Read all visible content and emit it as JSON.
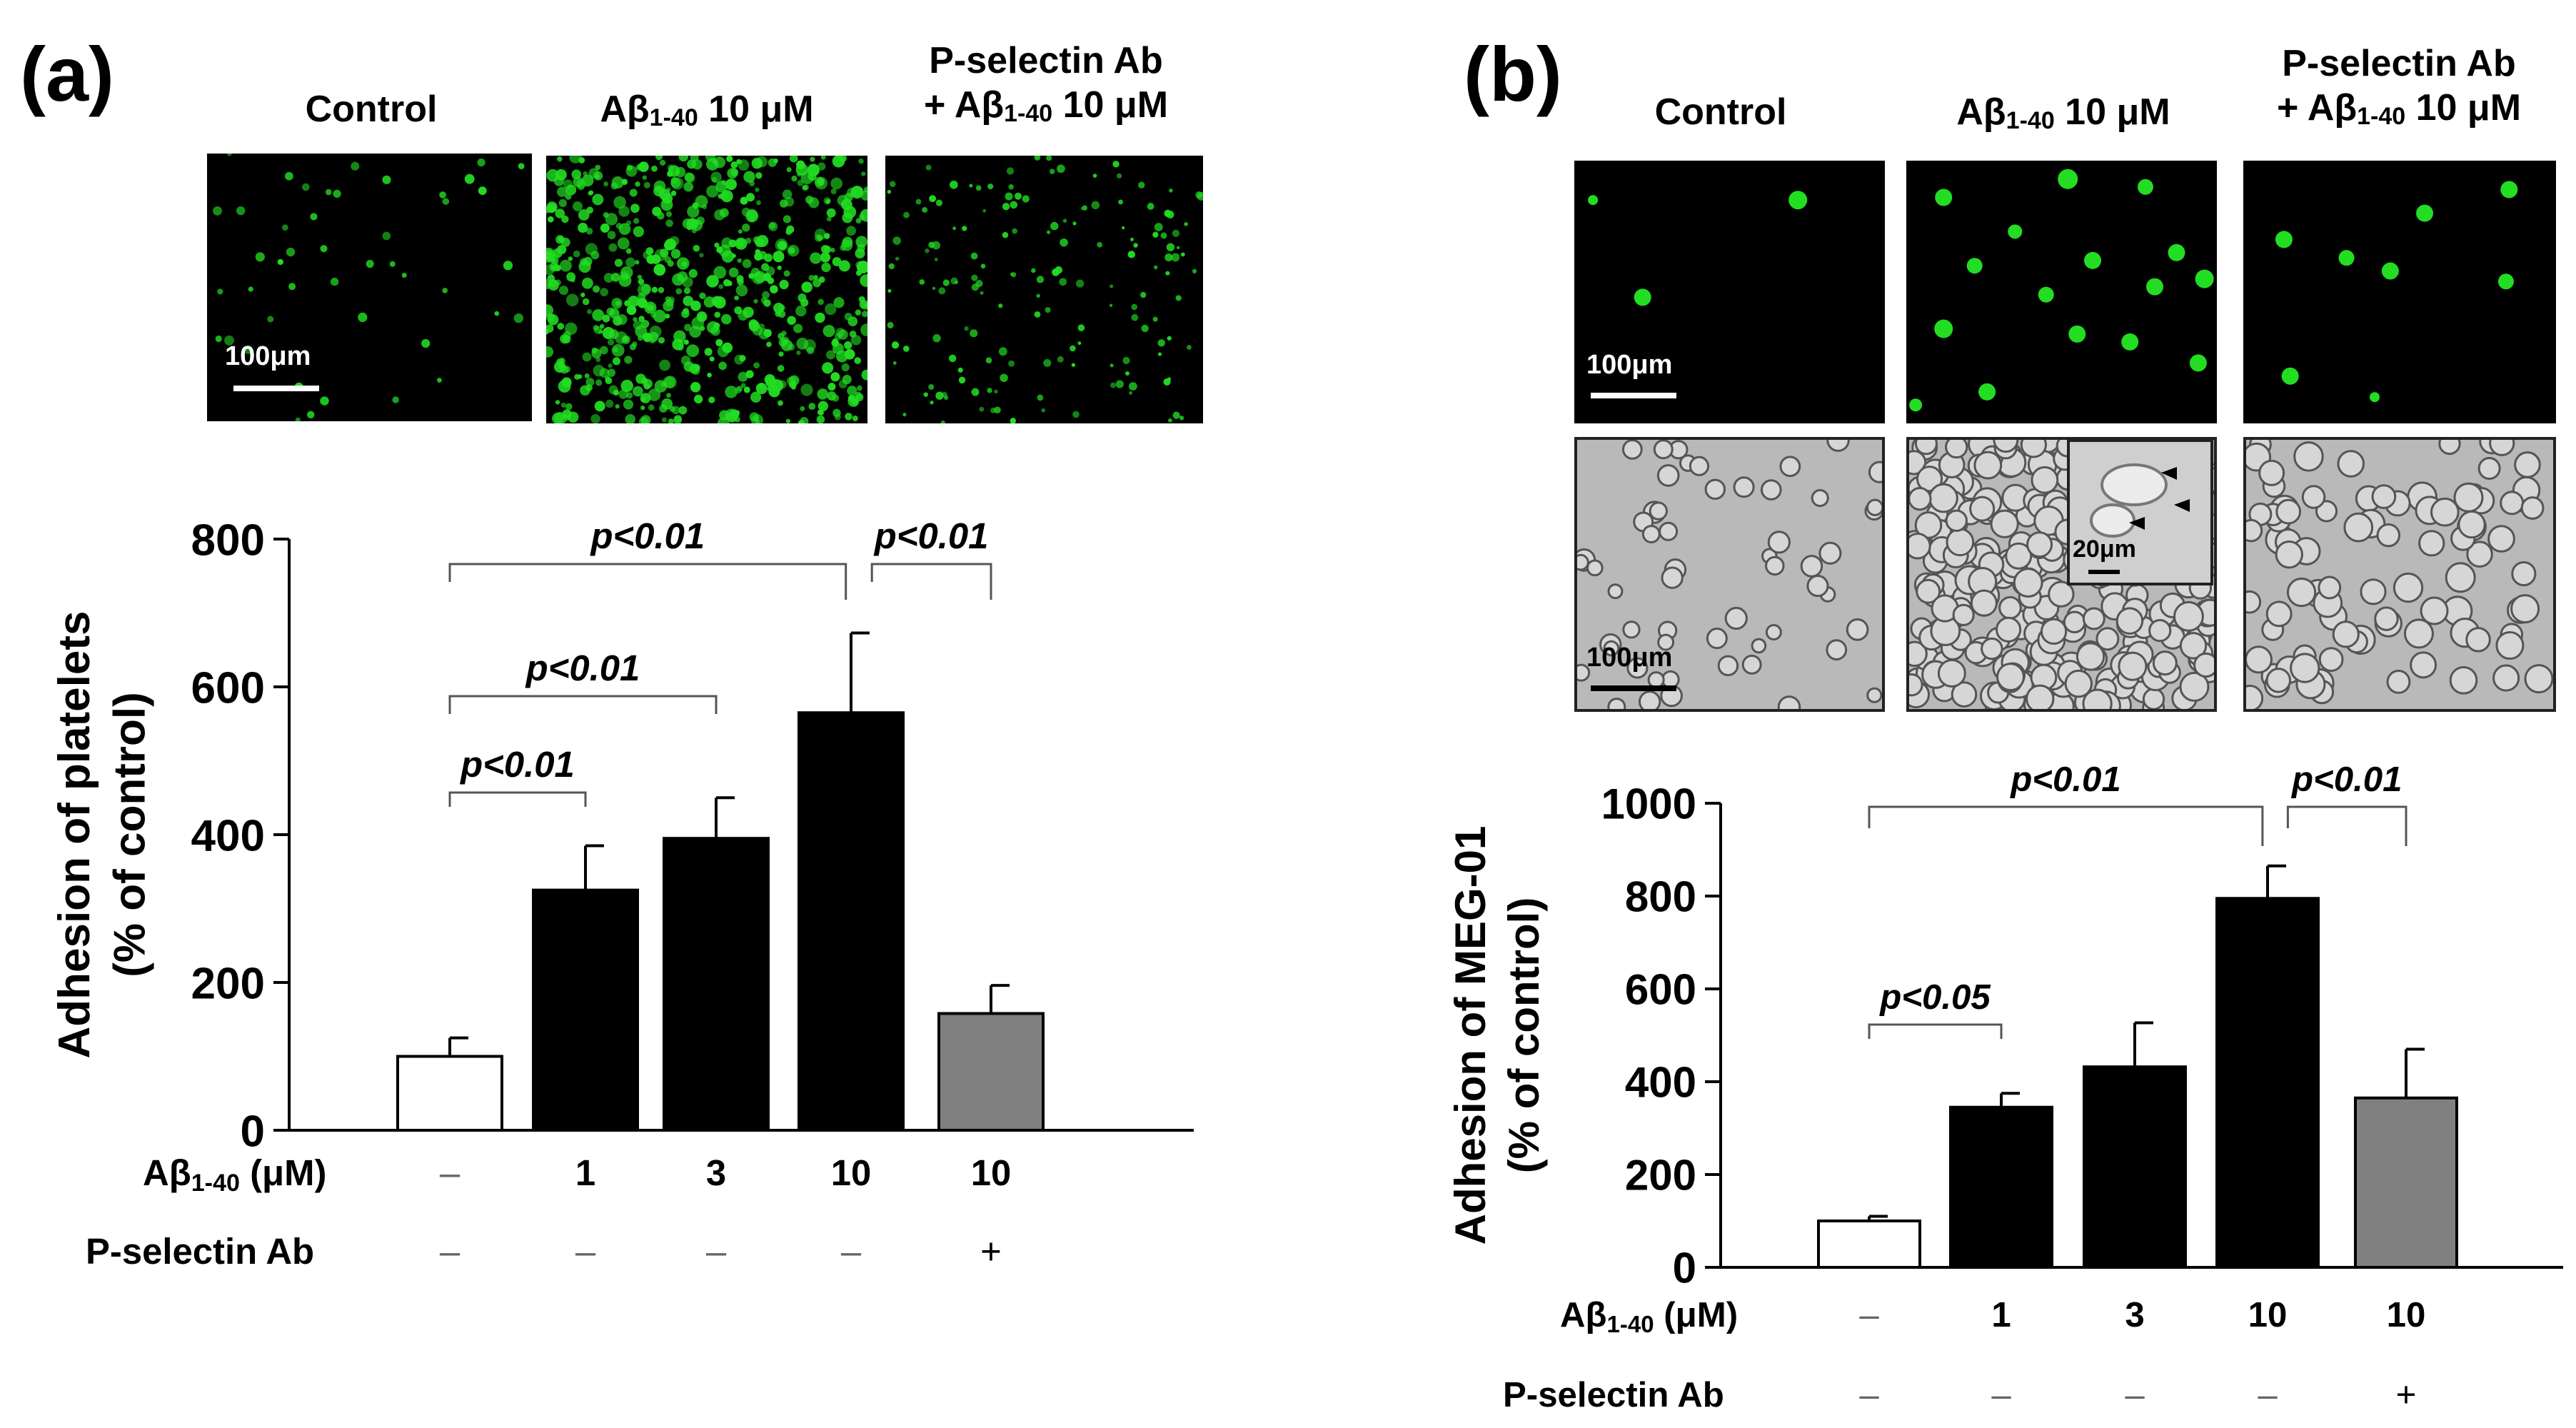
{
  "panels": {
    "a": {
      "letter": "(a)",
      "image_labels": [
        {
          "line1": "Control",
          "line2": ""
        },
        {
          "line1": "Aβ",
          "sub": "1-40",
          "rest": " 10 μM"
        },
        {
          "line1": "P-selectin Ab",
          "line2_pre": "+ Aβ",
          "sub": "1-40",
          "line2_post": " 10 μM"
        }
      ],
      "scale_bar": "100μm",
      "treatment_rows": {
        "abeta_label": "Aβ",
        "abeta_sub": "1-40",
        "abeta_unit": " (μM)",
        "abeta_values": [
          "–",
          "1",
          "3",
          "10",
          "10"
        ],
        "pselectin_label": "P-selectin Ab",
        "pselectin_values": [
          "–",
          "–",
          "–",
          "–",
          "+"
        ]
      }
    },
    "b": {
      "letter": "(b)",
      "image_labels": [
        {
          "line1": "Control",
          "line2": ""
        },
        {
          "line1": "Aβ",
          "sub": "1-40",
          "rest": " 10 μM"
        },
        {
          "line1": "P-selectin Ab",
          "line2_pre": "+ Aβ",
          "sub": "1-40",
          "line2_post": " 10 μM"
        }
      ],
      "scale_bar_fluor": "100μm",
      "scale_bar_phase": "100μm",
      "inset_scale": "20μm",
      "treatment_rows": {
        "abeta_label": "Aβ",
        "abeta_sub": "1-40",
        "abeta_unit": " (μM)",
        "abeta_values": [
          "–",
          "1",
          "3",
          "10",
          "10"
        ],
        "pselectin_label": "P-selectin Ab",
        "pselectin_values": [
          "–",
          "–",
          "–",
          "–",
          "+"
        ]
      }
    }
  },
  "chart_data": [
    {
      "type": "bar",
      "panel": "a",
      "ylabel_line1": "Adhesion of platelets",
      "ylabel_line2": "(% of control)",
      "ylim": [
        0,
        800
      ],
      "yticks": [
        0,
        200,
        400,
        600,
        800
      ],
      "categories": [
        "–",
        "1",
        "3",
        "10",
        "10"
      ],
      "values": [
        100,
        325,
        395,
        565,
        158
      ],
      "errors": [
        25,
        60,
        55,
        108,
        38
      ],
      "bar_colors": [
        "#ffffff",
        "#000000",
        "#000000",
        "#000000",
        "#808080"
      ],
      "significance": [
        {
          "from": 0,
          "to": 1,
          "label": "p<0.01"
        },
        {
          "from": 0,
          "to": 2,
          "label": "p<0.01"
        },
        {
          "from": 0,
          "to": 3,
          "label": "p<0.01"
        },
        {
          "from": 3,
          "to": 4,
          "label": "p<0.01"
        }
      ]
    },
    {
      "type": "bar",
      "panel": "b",
      "ylabel_line1": "Adhesion of MEG-01",
      "ylabel_line2": "(% of control)",
      "ylim": [
        0,
        1000
      ],
      "yticks": [
        0,
        200,
        400,
        600,
        800,
        1000
      ],
      "categories": [
        "–",
        "1",
        "3",
        "10",
        "10"
      ],
      "values": [
        100,
        345,
        432,
        795,
        365
      ],
      "errors": [
        10,
        30,
        95,
        70,
        105
      ],
      "bar_colors": [
        "#ffffff",
        "#000000",
        "#000000",
        "#000000",
        "#808080"
      ],
      "significance": [
        {
          "from": 0,
          "to": 1,
          "label": "p<0.05"
        },
        {
          "from": 0,
          "to": 3,
          "label": "p<0.01"
        },
        {
          "from": 3,
          "to": 4,
          "label": "p<0.01"
        }
      ]
    }
  ],
  "colors": {
    "fluor": "#22dd22",
    "phase_bg": "#b9b9b9",
    "control_bar": "#ffffff",
    "treated_bar": "#000000",
    "antibody_bar": "#808080"
  }
}
